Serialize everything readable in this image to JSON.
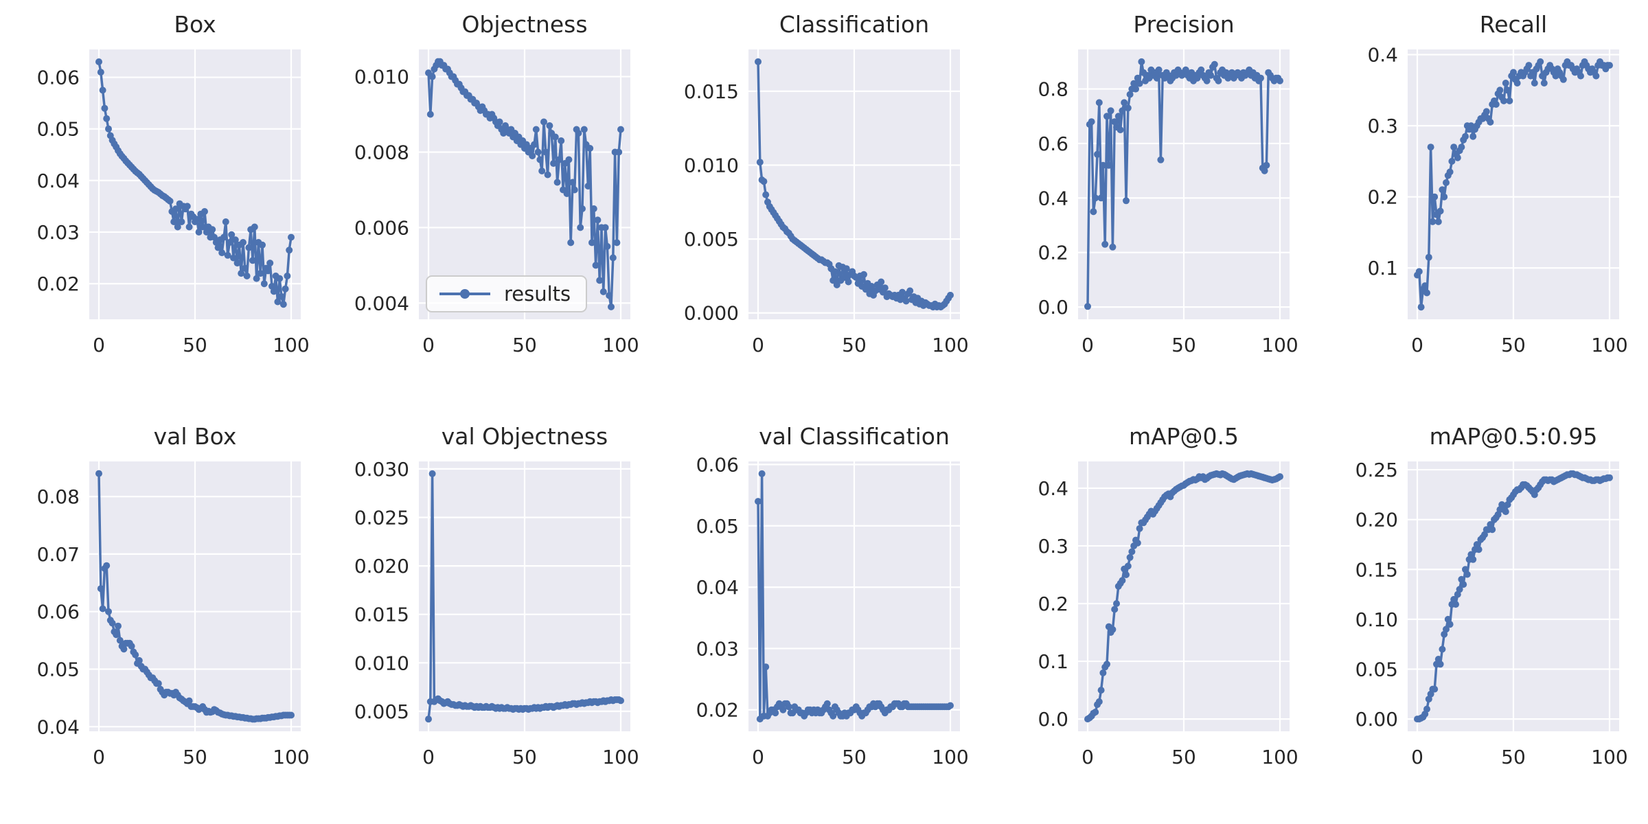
{
  "figure": {
    "background": "#ffffff",
    "axes_background": "#eaeaf2",
    "grid_color": "#ffffff",
    "line_color": "#4c72b0",
    "text_color": "#262626",
    "marker": "circle"
  },
  "legend": {
    "label": "results",
    "subplot": "Objectness",
    "position": "lower-left"
  },
  "chart_data": [
    {
      "type": "line",
      "title": "Box",
      "xticks": [
        0,
        50,
        100
      ],
      "xlim": [
        -5,
        105
      ],
      "x_start": 0,
      "x_step": 1,
      "yticks": [
        0.02,
        0.03,
        0.04,
        0.05,
        0.06
      ],
      "ylim": [
        0.0131,
        0.0654
      ],
      "ydecimals": 2,
      "grid": true,
      "values": [
        0.063,
        0.061,
        0.0575,
        0.054,
        0.052,
        0.05,
        0.0487,
        0.0478,
        0.0471,
        0.0465,
        0.0458,
        0.0452,
        0.0447,
        0.0443,
        0.0438,
        0.0434,
        0.043,
        0.0426,
        0.0422,
        0.0418,
        0.0415,
        0.0412,
        0.0408,
        0.0404,
        0.04,
        0.0396,
        0.0392,
        0.0388,
        0.0384,
        0.0381,
        0.0379,
        0.0377,
        0.0374,
        0.0371,
        0.0369,
        0.0366,
        0.0363,
        0.036,
        0.034,
        0.032,
        0.0345,
        0.031,
        0.0355,
        0.032,
        0.035,
        0.0345,
        0.035,
        0.031,
        0.0335,
        0.033,
        0.032,
        0.0325,
        0.03,
        0.0335,
        0.031,
        0.034,
        0.03,
        0.031,
        0.029,
        0.0305,
        0.029,
        0.028,
        0.027,
        0.0285,
        0.026,
        0.029,
        0.032,
        0.0255,
        0.028,
        0.0295,
        0.025,
        0.0285,
        0.024,
        0.0275,
        0.022,
        0.028,
        0.023,
        0.0215,
        0.027,
        0.0305,
        0.0245,
        0.031,
        0.021,
        0.028,
        0.022,
        0.0275,
        0.02,
        0.023,
        0.0225,
        0.024,
        0.0195,
        0.0185,
        0.0215,
        0.0165,
        0.021,
        0.0175,
        0.016,
        0.019,
        0.0215,
        0.0265,
        0.029
      ]
    },
    {
      "type": "line",
      "title": "Objectness",
      "xticks": [
        0,
        50,
        100
      ],
      "xlim": [
        -5,
        105
      ],
      "x_start": 0,
      "x_step": 1,
      "yticks": [
        0.004,
        0.006,
        0.008,
        0.01
      ],
      "ylim": [
        0.00357,
        0.01072
      ],
      "ydecimals": 3,
      "grid": true,
      "has_legend": true,
      "values": [
        0.0101,
        0.009,
        0.01,
        0.0102,
        0.0103,
        0.0104,
        0.0104,
        0.0103,
        0.0103,
        0.0102,
        0.0102,
        0.0101,
        0.01,
        0.01,
        0.0099,
        0.0098,
        0.0098,
        0.0097,
        0.0096,
        0.0096,
        0.0095,
        0.0095,
        0.0094,
        0.0094,
        0.0093,
        0.0093,
        0.0092,
        0.0091,
        0.0092,
        0.0091,
        0.009,
        0.009,
        0.0089,
        0.009,
        0.0089,
        0.0088,
        0.0087,
        0.0088,
        0.0086,
        0.0085,
        0.0087,
        0.0086,
        0.0085,
        0.0086,
        0.0084,
        0.0085,
        0.0083,
        0.0084,
        0.0082,
        0.0083,
        0.0081,
        0.0082,
        0.008,
        0.0081,
        0.0079,
        0.0082,
        0.0086,
        0.008,
        0.0078,
        0.0075,
        0.0088,
        0.008,
        0.0074,
        0.0087,
        0.0085,
        0.0077,
        0.0084,
        0.0072,
        0.0078,
        0.0083,
        0.007,
        0.0077,
        0.0069,
        0.0078,
        0.0056,
        0.0072,
        0.007,
        0.0086,
        0.0085,
        0.006,
        0.0065,
        0.0086,
        0.0082,
        0.0071,
        0.0081,
        0.0056,
        0.0065,
        0.005,
        0.0062,
        0.0046,
        0.006,
        0.0043,
        0.006,
        0.0055,
        0.0042,
        0.0039,
        0.0052,
        0.008,
        0.0056,
        0.008,
        0.0086
      ]
    },
    {
      "type": "line",
      "title": "Classification",
      "xticks": [
        0,
        50,
        100
      ],
      "xlim": [
        -5,
        105
      ],
      "x_start": 0,
      "x_step": 1,
      "yticks": [
        0.0,
        0.005,
        0.01,
        0.015
      ],
      "ylim": [
        -0.00043,
        0.01783
      ],
      "ydecimals": 3,
      "grid": true,
      "values": [
        0.017,
        0.0102,
        0.009,
        0.0089,
        0.008,
        0.0075,
        0.0072,
        0.007,
        0.0068,
        0.0066,
        0.0064,
        0.0062,
        0.006,
        0.0058,
        0.0057,
        0.0055,
        0.0054,
        0.0052,
        0.005,
        0.0049,
        0.0048,
        0.0047,
        0.0046,
        0.0045,
        0.0044,
        0.0043,
        0.0042,
        0.0041,
        0.004,
        0.0039,
        0.0038,
        0.0037,
        0.0036,
        0.0036,
        0.0035,
        0.0034,
        0.0034,
        0.0033,
        0.003,
        0.0022,
        0.0028,
        0.0019,
        0.0032,
        0.0022,
        0.0031,
        0.0024,
        0.003,
        0.0021,
        0.0026,
        0.0028,
        0.0025,
        0.0024,
        0.002,
        0.0025,
        0.0018,
        0.0026,
        0.0016,
        0.002,
        0.0013,
        0.0018,
        0.0012,
        0.0015,
        0.0019,
        0.0016,
        0.0021,
        0.0014,
        0.0017,
        0.0011,
        0.0013,
        0.0012,
        0.0011,
        0.0012,
        0.001,
        0.0012,
        0.0009,
        0.0014,
        0.001,
        0.0008,
        0.0013,
        0.0015,
        0.0009,
        0.0011,
        0.0007,
        0.001,
        0.0006,
        0.0008,
        0.0005,
        0.0007,
        0.0006,
        0.0005,
        0.0005,
        0.0004,
        0.0006,
        0.0004,
        0.0005,
        0.0004,
        0.0005,
        0.0006,
        0.0008,
        0.001,
        0.0012
      ]
    },
    {
      "type": "line",
      "title": "Precision",
      "xticks": [
        0,
        50,
        100
      ],
      "xlim": [
        -5,
        105
      ],
      "x_start": 0,
      "x_step": 1,
      "yticks": [
        0.0,
        0.2,
        0.4,
        0.6,
        0.8
      ],
      "ylim": [
        -0.045,
        0.945
      ],
      "ydecimals": 1,
      "grid": true,
      "values": [
        0.002,
        0.67,
        0.68,
        0.35,
        0.4,
        0.56,
        0.75,
        0.4,
        0.52,
        0.23,
        0.7,
        0.52,
        0.72,
        0.22,
        0.68,
        0.66,
        0.7,
        0.65,
        0.72,
        0.75,
        0.39,
        0.73,
        0.78,
        0.8,
        0.82,
        0.8,
        0.84,
        0.82,
        0.9,
        0.86,
        0.83,
        0.85,
        0.84,
        0.87,
        0.85,
        0.86,
        0.84,
        0.87,
        0.54,
        0.85,
        0.84,
        0.86,
        0.85,
        0.83,
        0.84,
        0.86,
        0.85,
        0.87,
        0.86,
        0.85,
        0.86,
        0.87,
        0.85,
        0.84,
        0.86,
        0.83,
        0.85,
        0.84,
        0.86,
        0.87,
        0.85,
        0.84,
        0.83,
        0.86,
        0.85,
        0.88,
        0.89,
        0.84,
        0.83,
        0.86,
        0.87,
        0.85,
        0.86,
        0.84,
        0.85,
        0.86,
        0.84,
        0.85,
        0.86,
        0.85,
        0.84,
        0.86,
        0.85,
        0.86,
        0.87,
        0.85,
        0.86,
        0.84,
        0.85,
        0.83,
        0.84,
        0.51,
        0.5,
        0.52,
        0.86,
        0.85,
        0.84,
        0.83,
        0.84,
        0.84,
        0.83
      ]
    },
    {
      "type": "line",
      "title": "Recall",
      "xticks": [
        0,
        50,
        100
      ],
      "xlim": [
        -5,
        105
      ],
      "x_start": 0,
      "x_step": 1,
      "yticks": [
        0.1,
        0.2,
        0.3,
        0.4
      ],
      "ylim": [
        0.0278,
        0.4073
      ],
      "ydecimals": 1,
      "grid": true,
      "values": [
        0.09,
        0.095,
        0.045,
        0.07,
        0.075,
        0.065,
        0.115,
        0.27,
        0.165,
        0.2,
        0.175,
        0.165,
        0.18,
        0.21,
        0.2,
        0.22,
        0.23,
        0.235,
        0.25,
        0.27,
        0.26,
        0.255,
        0.265,
        0.27,
        0.28,
        0.285,
        0.3,
        0.295,
        0.3,
        0.285,
        0.295,
        0.3,
        0.305,
        0.31,
        0.31,
        0.315,
        0.32,
        0.31,
        0.305,
        0.33,
        0.335,
        0.33,
        0.345,
        0.35,
        0.34,
        0.335,
        0.36,
        0.35,
        0.335,
        0.37,
        0.375,
        0.365,
        0.36,
        0.37,
        0.375,
        0.37,
        0.375,
        0.38,
        0.385,
        0.37,
        0.375,
        0.36,
        0.38,
        0.385,
        0.39,
        0.37,
        0.36,
        0.375,
        0.38,
        0.385,
        0.38,
        0.375,
        0.37,
        0.38,
        0.375,
        0.37,
        0.365,
        0.385,
        0.39,
        0.385,
        0.385,
        0.38,
        0.375,
        0.38,
        0.375,
        0.37,
        0.385,
        0.39,
        0.385,
        0.38,
        0.375,
        0.38,
        0.375,
        0.37,
        0.385,
        0.39,
        0.385,
        0.385,
        0.38,
        0.385,
        0.385
      ]
    },
    {
      "type": "line",
      "title": "val Box",
      "xticks": [
        0,
        50,
        100
      ],
      "xlim": [
        -5,
        105
      ],
      "x_start": 0,
      "x_step": 1,
      "yticks": [
        0.04,
        0.05,
        0.06,
        0.07,
        0.08
      ],
      "ylim": [
        0.0392,
        0.0861
      ],
      "ydecimals": 2,
      "grid": true,
      "values": [
        0.084,
        0.064,
        0.0605,
        0.0675,
        0.068,
        0.06,
        0.0585,
        0.058,
        0.0565,
        0.056,
        0.0575,
        0.055,
        0.054,
        0.0535,
        0.0545,
        0.0545,
        0.0545,
        0.054,
        0.053,
        0.0525,
        0.051,
        0.0515,
        0.0505,
        0.05,
        0.05,
        0.0495,
        0.049,
        0.0485,
        0.0485,
        0.048,
        0.0475,
        0.0475,
        0.0465,
        0.046,
        0.0455,
        0.046,
        0.046,
        0.0458,
        0.0458,
        0.0455,
        0.046,
        0.0455,
        0.045,
        0.0448,
        0.0445,
        0.0443,
        0.044,
        0.0445,
        0.0435,
        0.0435,
        0.0435,
        0.0433,
        0.043,
        0.0432,
        0.0435,
        0.043,
        0.0425,
        0.0427,
        0.0425,
        0.0426,
        0.043,
        0.0428,
        0.0425,
        0.0424,
        0.0422,
        0.0421,
        0.042,
        0.042,
        0.0419,
        0.0419,
        0.0418,
        0.0418,
        0.0417,
        0.0417,
        0.0416,
        0.0416,
        0.0415,
        0.0415,
        0.0414,
        0.0414,
        0.0413,
        0.0413,
        0.0414,
        0.0414,
        0.0414,
        0.0415,
        0.0415,
        0.0415,
        0.0416,
        0.0416,
        0.0417,
        0.0417,
        0.0418,
        0.0418,
        0.0419,
        0.0419,
        0.042,
        0.042,
        0.042,
        0.042,
        0.042
      ]
    },
    {
      "type": "line",
      "title": "val Objectness",
      "xticks": [
        0,
        50,
        100
      ],
      "xlim": [
        -5,
        105
      ],
      "x_start": 0,
      "x_step": 1,
      "yticks": [
        0.005,
        0.01,
        0.015,
        0.02,
        0.025,
        0.03
      ],
      "ylim": [
        0.00294,
        0.03077
      ],
      "ydecimals": 3,
      "grid": true,
      "values": [
        0.0042,
        0.006,
        0.0295,
        0.006,
        0.0062,
        0.0063,
        0.0061,
        0.006,
        0.0058,
        0.0059,
        0.006,
        0.0058,
        0.0057,
        0.0057,
        0.0056,
        0.0056,
        0.0057,
        0.0056,
        0.0055,
        0.0056,
        0.0055,
        0.0055,
        0.0056,
        0.0055,
        0.0054,
        0.0055,
        0.0054,
        0.0055,
        0.0054,
        0.0054,
        0.0055,
        0.0054,
        0.0054,
        0.0055,
        0.0054,
        0.0053,
        0.0054,
        0.0053,
        0.0054,
        0.0053,
        0.0053,
        0.0054,
        0.0053,
        0.0053,
        0.0052,
        0.0053,
        0.0053,
        0.0052,
        0.0053,
        0.0052,
        0.0053,
        0.0053,
        0.0052,
        0.0053,
        0.0053,
        0.0054,
        0.0053,
        0.0054,
        0.0053,
        0.0054,
        0.0054,
        0.0055,
        0.0054,
        0.0055,
        0.0055,
        0.0054,
        0.0055,
        0.0056,
        0.0055,
        0.0056,
        0.0056,
        0.0057,
        0.0056,
        0.0057,
        0.0057,
        0.0058,
        0.0058,
        0.0057,
        0.0058,
        0.0058,
        0.0059,
        0.0058,
        0.0059,
        0.0059,
        0.006,
        0.0059,
        0.006,
        0.006,
        0.0059,
        0.006,
        0.006,
        0.0061,
        0.006,
        0.0061,
        0.0061,
        0.0062,
        0.0061,
        0.0062,
        0.0062,
        0.0062,
        0.0061
      ]
    },
    {
      "type": "line",
      "title": "val Classification",
      "xticks": [
        0,
        50,
        100
      ],
      "xlim": [
        -5,
        105
      ],
      "x_start": 0,
      "x_step": 1,
      "yticks": [
        0.02,
        0.03,
        0.04,
        0.05,
        0.06
      ],
      "ylim": [
        0.0165,
        0.0605
      ],
      "ydecimals": 2,
      "grid": true,
      "values": [
        0.054,
        0.0185,
        0.0585,
        0.019,
        0.027,
        0.019,
        0.0195,
        0.02,
        0.02,
        0.0195,
        0.0205,
        0.021,
        0.0205,
        0.02,
        0.021,
        0.021,
        0.0205,
        0.0195,
        0.0195,
        0.0205,
        0.02,
        0.02,
        0.0195,
        0.0195,
        0.019,
        0.0195,
        0.02,
        0.02,
        0.0195,
        0.02,
        0.0195,
        0.02,
        0.0195,
        0.0195,
        0.02,
        0.0205,
        0.021,
        0.02,
        0.0195,
        0.019,
        0.0205,
        0.02,
        0.0195,
        0.019,
        0.019,
        0.0195,
        0.019,
        0.0195,
        0.0195,
        0.02,
        0.02,
        0.0205,
        0.02,
        0.0195,
        0.019,
        0.0195,
        0.0195,
        0.02,
        0.0205,
        0.0205,
        0.021,
        0.0205,
        0.021,
        0.021,
        0.0205,
        0.02,
        0.0195,
        0.02,
        0.02,
        0.0205,
        0.0205,
        0.021,
        0.021,
        0.021,
        0.0205,
        0.0205,
        0.021,
        0.021,
        0.0205,
        0.0205,
        0.0205,
        0.0205,
        0.0205,
        0.0205,
        0.0205,
        0.0205,
        0.0205,
        0.0205,
        0.0205,
        0.0205,
        0.0205,
        0.0205,
        0.0205,
        0.0205,
        0.0205,
        0.0205,
        0.0205,
        0.0205,
        0.0205,
        0.0205,
        0.0207
      ]
    },
    {
      "type": "line",
      "title": "mAP@0.5",
      "xticks": [
        0,
        50,
        100
      ],
      "xlim": [
        -5,
        105
      ],
      "x_start": 0,
      "x_step": 1,
      "yticks": [
        0.0,
        0.1,
        0.2,
        0.3,
        0.4
      ],
      "ylim": [
        -0.0213,
        0.4463
      ],
      "ydecimals": 1,
      "grid": true,
      "values": [
        0,
        0.002,
        0.005,
        0.01,
        0.012,
        0.025,
        0.03,
        0.05,
        0.08,
        0.09,
        0.095,
        0.16,
        0.15,
        0.155,
        0.19,
        0.2,
        0.23,
        0.235,
        0.24,
        0.26,
        0.25,
        0.265,
        0.28,
        0.29,
        0.3,
        0.31,
        0.305,
        0.33,
        0.34,
        0.34,
        0.345,
        0.35,
        0.355,
        0.36,
        0.355,
        0.36,
        0.365,
        0.37,
        0.375,
        0.38,
        0.385,
        0.388,
        0.39,
        0.385,
        0.392,
        0.395,
        0.398,
        0.4,
        0.402,
        0.404,
        0.405,
        0.408,
        0.41,
        0.412,
        0.413,
        0.415,
        0.414,
        0.416,
        0.42,
        0.418,
        0.42,
        0.415,
        0.417,
        0.42,
        0.422,
        0.423,
        0.424,
        0.425,
        0.424,
        0.423,
        0.425,
        0.424,
        0.422,
        0.42,
        0.418,
        0.416,
        0.415,
        0.417,
        0.419,
        0.421,
        0.422,
        0.423,
        0.424,
        0.425,
        0.424,
        0.425,
        0.424,
        0.423,
        0.422,
        0.421,
        0.42,
        0.419,
        0.418,
        0.417,
        0.416,
        0.415,
        0.414,
        0.415,
        0.416,
        0.418,
        0.42
      ]
    },
    {
      "type": "line",
      "title": "mAP@0.5:0.95",
      "xticks": [
        0,
        50,
        100
      ],
      "xlim": [
        -5,
        105
      ],
      "x_start": 0,
      "x_step": 1,
      "yticks": [
        0.0,
        0.05,
        0.1,
        0.15,
        0.2,
        0.25
      ],
      "ylim": [
        -0.0123,
        0.2583
      ],
      "ydecimals": 2,
      "grid": true,
      "values": [
        0,
        0,
        0.001,
        0.002,
        0.005,
        0.01,
        0.02,
        0.025,
        0.03,
        0.03,
        0.055,
        0.06,
        0.055,
        0.07,
        0.085,
        0.09,
        0.1,
        0.095,
        0.115,
        0.12,
        0.115,
        0.125,
        0.13,
        0.14,
        0.135,
        0.15,
        0.145,
        0.16,
        0.165,
        0.16,
        0.17,
        0.175,
        0.17,
        0.18,
        0.182,
        0.185,
        0.19,
        0.19,
        0.195,
        0.19,
        0.2,
        0.202,
        0.205,
        0.21,
        0.215,
        0.21,
        0.208,
        0.215,
        0.22,
        0.222,
        0.225,
        0.228,
        0.23,
        0.23,
        0.232,
        0.235,
        0.235,
        0.234,
        0.232,
        0.23,
        0.228,
        0.225,
        0.23,
        0.232,
        0.235,
        0.238,
        0.24,
        0.24,
        0.239,
        0.24,
        0.24,
        0.238,
        0.239,
        0.24,
        0.241,
        0.242,
        0.243,
        0.244,
        0.245,
        0.245,
        0.246,
        0.246,
        0.245,
        0.245,
        0.244,
        0.243,
        0.242,
        0.242,
        0.241,
        0.24,
        0.24,
        0.239,
        0.239,
        0.24,
        0.24,
        0.239,
        0.24,
        0.241,
        0.241,
        0.242,
        0.242
      ]
    }
  ]
}
